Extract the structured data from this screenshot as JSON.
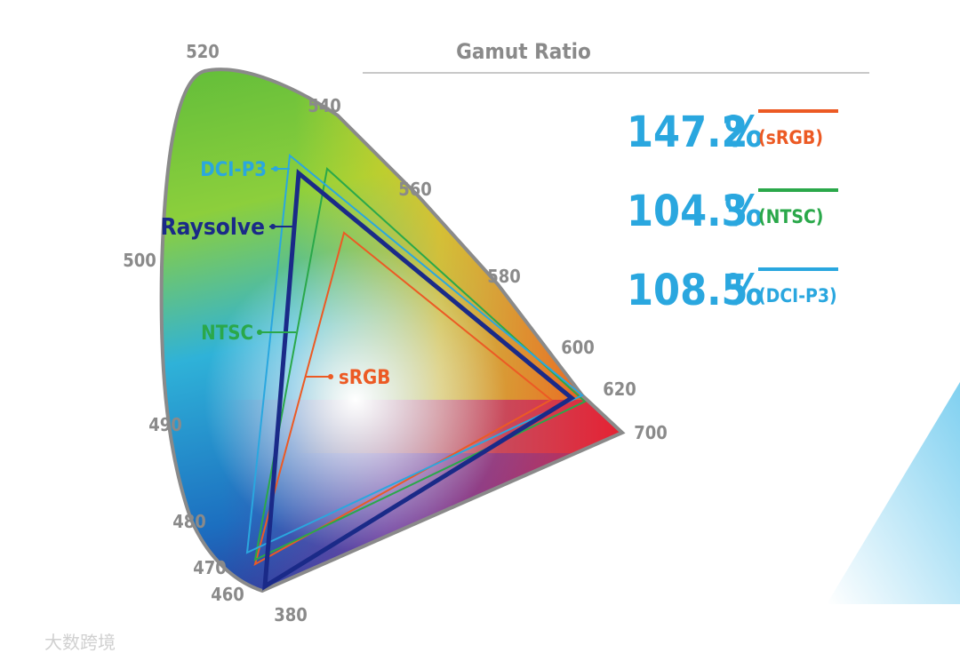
{
  "title": "Gamut Ratio",
  "ratios": [
    {
      "value": "147.2",
      "unit": "%",
      "label": "(sRGB)"
    },
    {
      "value": "104.3",
      "unit": "%",
      "label": "(NTSC)"
    },
    {
      "value": "108.5",
      "unit": "%",
      "label": "(DCI-P3)"
    }
  ],
  "wavelengths": [
    "520",
    "540",
    "560",
    "580",
    "600",
    "620",
    "700",
    "500",
    "490",
    "480",
    "470",
    "460",
    "380"
  ],
  "gamut_labels": {
    "dci_p3": "DCI-P3",
    "raysolve": "Raysolve",
    "ntsc": "NTSC",
    "srgb": "sRGB"
  },
  "watermark": "大数跨境"
}
